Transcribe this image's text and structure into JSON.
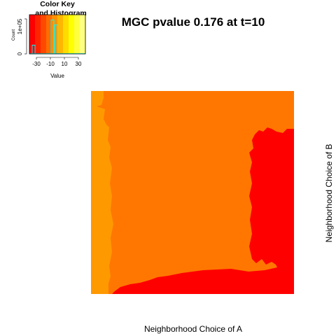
{
  "chart_data": {
    "type": "heatmap",
    "title": "MGC pvalue  0.176 at t=10",
    "xlabel": "Neighborhood Choice of A",
    "ylabel": "Neighborhood Choice of B",
    "colors": {
      "low": "#ff0000",
      "mid": "#ff7700",
      "high": "#ff9900"
    },
    "regions": [
      {
        "name": "background",
        "color": "mid"
      },
      {
        "name": "left-column",
        "color": "high"
      },
      {
        "name": "right-and-bottom",
        "color": "low"
      }
    ],
    "color_key": {
      "title": "Color Key and Histogram",
      "xlabel": "Value",
      "ylabel": "Count",
      "y_tick_labels": [
        "0",
        "1e+05"
      ],
      "x_tick_labels": [
        "-30",
        "-10",
        "10",
        "30"
      ],
      "x_ticks": [
        -30,
        -10,
        10,
        30
      ],
      "xlim": [
        -40,
        40
      ],
      "palette": [
        "#ff0000",
        "#ff2400",
        "#ff4900",
        "#ff6d00",
        "#ff9200",
        "#ffb600",
        "#ffdb00",
        "#ffff00",
        "#ffff40",
        "#ffff80"
      ],
      "histogram_spikes": [
        {
          "x": -34,
          "height": 0.25
        },
        {
          "x": -7,
          "height": 1.0
        },
        {
          "x": -2,
          "height": 0.85
        }
      ]
    }
  }
}
